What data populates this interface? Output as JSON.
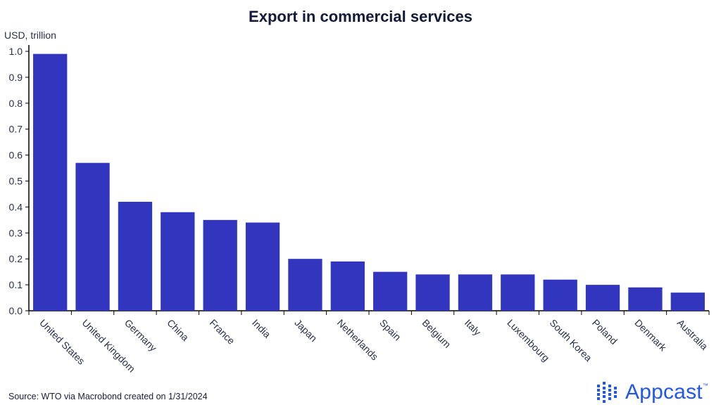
{
  "chart_data": {
    "type": "bar",
    "title": "Export in commercial services",
    "ylabel": "USD, trillion",
    "xlabel": "",
    "ylim": [
      0,
      1.0
    ],
    "yticks": [
      "0.0",
      "0.1",
      "0.2",
      "0.3",
      "0.4",
      "0.5",
      "0.6",
      "0.7",
      "0.8",
      "0.9",
      "1.0"
    ],
    "categories": [
      "United States",
      "United Kingdom",
      "Germany",
      "China",
      "France",
      "India",
      "Japan",
      "Netherlands",
      "Spain",
      "Belgium",
      "Italy",
      "Luxembourg",
      "South Korea",
      "Poland",
      "Denmark",
      "Australia"
    ],
    "values": [
      0.99,
      0.57,
      0.42,
      0.38,
      0.35,
      0.34,
      0.2,
      0.19,
      0.15,
      0.14,
      0.14,
      0.14,
      0.12,
      0.1,
      0.09,
      0.07
    ],
    "bar_color": "#3236bf",
    "grid": false
  },
  "footer": {
    "source": "Source: WTO via Macrobond created on 1/31/2024",
    "brand": "Appcast",
    "brand_mark": "™",
    "brand_color": "#2257e8"
  }
}
